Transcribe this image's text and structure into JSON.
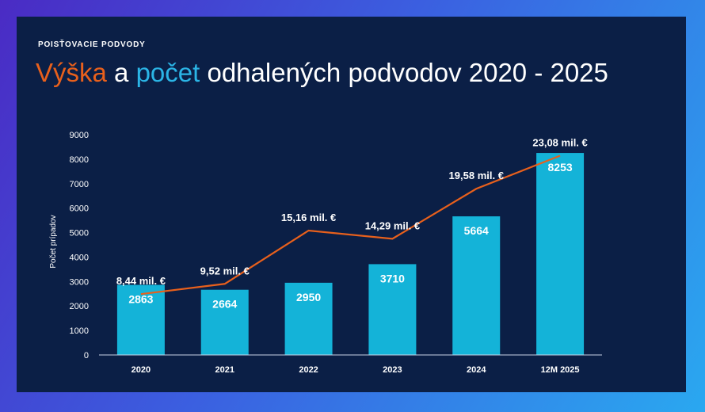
{
  "header": {
    "kicker": "POISŤOVACIE PODVODY",
    "title_part1": "Výška",
    "title_part2": " a ",
    "title_part3": "počet",
    "title_part4": " odhalených podvodov 2020 - 2025"
  },
  "colors": {
    "background": "#0b1f46",
    "bar": "#14b3d8",
    "line": "#e8601c",
    "title_orange": "#e8601c",
    "title_blue": "#2bb5e6"
  },
  "chart_data": {
    "type": "bar",
    "categories": [
      "2020",
      "2021",
      "2022",
      "2023",
      "2024",
      "12M 2025"
    ],
    "series": [
      {
        "values": [
          2863,
          2664,
          2950,
          3710,
          5664,
          8253
        ],
        "type": "bar"
      },
      {
        "values": [
          8.44,
          9.52,
          15.16,
          14.29,
          19.58,
          23.08
        ],
        "type": "line",
        "labels": [
          "8,44 mil. €",
          "9,52 mil. €",
          "15,16 mil. €",
          "14,29 mil. €",
          "19,58 mil. €",
          "23,08 mil. €"
        ]
      }
    ],
    "bar_labels": [
      "2863",
      "2664",
      "2950",
      "3710",
      "5664",
      "8253"
    ],
    "ylabel": "Počet prípadov",
    "ylim": [
      0,
      9000
    ],
    "yticks": [
      "0",
      "1000",
      "2000",
      "3000",
      "4000",
      "5000",
      "6000",
      "7000",
      "8000",
      "9000"
    ],
    "grid": false,
    "legend": "none"
  }
}
